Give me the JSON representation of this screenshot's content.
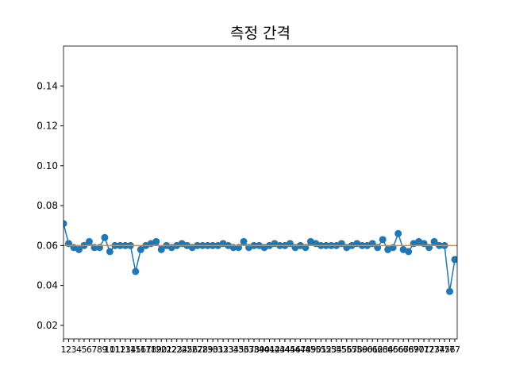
{
  "chart_data": {
    "type": "line",
    "title": "측정 간격",
    "categories": [
      "1",
      "2",
      "3",
      "4",
      "5",
      "6",
      "7",
      "8",
      "9",
      "10",
      "11",
      "12",
      "13",
      "14",
      "15",
      "16",
      "17",
      "18",
      "19",
      "20",
      "21",
      "22",
      "23",
      "24",
      "25",
      "26",
      "27",
      "28",
      "29",
      "30",
      "31",
      "32",
      "33",
      "34",
      "35",
      "36",
      "37",
      "38",
      "39",
      "40",
      "41",
      "42",
      "43",
      "44",
      "45",
      "46",
      "47",
      "48",
      "49",
      "50",
      "51",
      "52",
      "53",
      "54",
      "55",
      "56",
      "57",
      "58",
      "59",
      "60",
      "61",
      "62",
      "63",
      "64",
      "65",
      "66",
      "67",
      "68",
      "69",
      "70",
      "71",
      "72",
      "73",
      "74",
      "75",
      "76",
      "77"
    ],
    "series": [
      {
        "color": "#1f77b4",
        "values": [
          0.071,
          0.061,
          0.059,
          0.058,
          0.06,
          0.062,
          0.059,
          0.059,
          0.064,
          0.057,
          0.06,
          0.06,
          0.06,
          0.06,
          0.047,
          0.058,
          0.06,
          0.061,
          0.062,
          0.058,
          0.06,
          0.059,
          0.06,
          0.061,
          0.06,
          0.059,
          0.06,
          0.06,
          0.06,
          0.06,
          0.06,
          0.061,
          0.06,
          0.059,
          0.059,
          0.062,
          0.059,
          0.06,
          0.06,
          0.059,
          0.06,
          0.061,
          0.06,
          0.06,
          0.061,
          0.059,
          0.06,
          0.059,
          0.062,
          0.061,
          0.06,
          0.06,
          0.06,
          0.06,
          0.061,
          0.059,
          0.06,
          0.061,
          0.06,
          0.06,
          0.061,
          0.059,
          0.063,
          0.058,
          0.059,
          0.066,
          0.058,
          0.057,
          0.061,
          0.062,
          0.061,
          0.059,
          0.062,
          0.06,
          0.06,
          0.037,
          0.053
        ]
      }
    ],
    "reference_line": {
      "value": 0.06,
      "color": "#ff7f0e"
    },
    "ylim": [
      0.0132,
      0.16
    ],
    "yticks": [
      {
        "value": 0.02,
        "label": "0.02"
      },
      {
        "value": 0.04,
        "label": "0.04"
      },
      {
        "value": 0.06,
        "label": "0.06"
      },
      {
        "value": 0.08,
        "label": "0.08"
      },
      {
        "value": 0.1,
        "label": "0.10"
      },
      {
        "value": 0.12,
        "label": "0.12"
      },
      {
        "value": 0.14,
        "label": "0.14"
      }
    ]
  }
}
